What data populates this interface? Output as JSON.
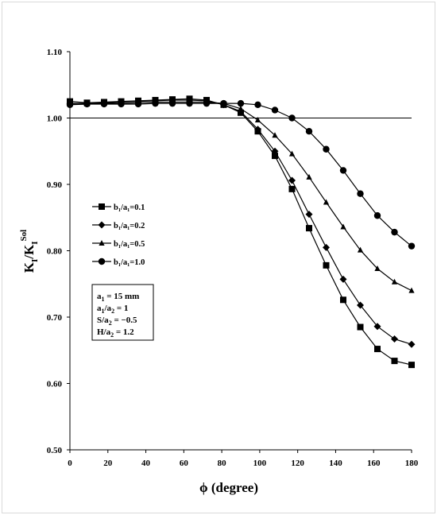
{
  "chart_data": {
    "type": "line",
    "xlabel": "ϕ (degree)",
    "ylabel": {
      "main": "K",
      "sub1": "I",
      "mid": "/K",
      "sub2": "I",
      "sup": "Sol"
    },
    "xlim": [
      0,
      180
    ],
    "ylim": [
      0.5,
      1.1
    ],
    "xticks": [
      0,
      20,
      40,
      60,
      80,
      100,
      120,
      140,
      160,
      180
    ],
    "yticks": [
      0.5,
      0.6,
      0.7,
      0.8,
      0.9,
      1.0,
      1.1
    ],
    "xtick_labels": [
      "0",
      "20",
      "40",
      "60",
      "80",
      "100",
      "120",
      "140",
      "160",
      "180"
    ],
    "ytick_labels": [
      "0.50",
      "0.60",
      "0.70",
      "0.80",
      "0.90",
      "1.00",
      "1.10"
    ],
    "reference_line": 1.0,
    "grid": false,
    "legend_position": "left-middle",
    "series": [
      {
        "name": "b₁/a₁=0.1",
        "marker": "square",
        "x": [
          0,
          9,
          18,
          27,
          36,
          45,
          54,
          63,
          72,
          81,
          90,
          99,
          108,
          117,
          126,
          135,
          144,
          153,
          162,
          171,
          180
        ],
        "y": [
          1.025,
          1.023,
          1.024,
          1.025,
          1.026,
          1.027,
          1.028,
          1.029,
          1.027,
          1.02,
          1.008,
          0.98,
          0.943,
          0.893,
          0.834,
          0.778,
          0.726,
          0.685,
          0.652,
          0.634,
          0.628
        ]
      },
      {
        "name": "b₁/a₁=0.2",
        "marker": "diamond",
        "x": [
          0,
          9,
          18,
          27,
          36,
          45,
          54,
          63,
          72,
          81,
          90,
          99,
          108,
          117,
          126,
          135,
          144,
          153,
          162,
          171,
          180
        ],
        "y": [
          1.022,
          1.022,
          1.023,
          1.024,
          1.025,
          1.026,
          1.027,
          1.027,
          1.026,
          1.02,
          1.01,
          0.983,
          0.95,
          0.906,
          0.855,
          0.805,
          0.757,
          0.718,
          0.686,
          0.667,
          0.659
        ]
      },
      {
        "name": "b₁/a₁=0.5",
        "marker": "triangle",
        "x": [
          0,
          9,
          18,
          27,
          36,
          45,
          54,
          63,
          72,
          81,
          90,
          99,
          108,
          117,
          126,
          135,
          144,
          153,
          162,
          171,
          180
        ],
        "y": [
          1.021,
          1.021,
          1.022,
          1.022,
          1.023,
          1.024,
          1.024,
          1.024,
          1.024,
          1.022,
          1.014,
          0.997,
          0.974,
          0.946,
          0.911,
          0.873,
          0.836,
          0.801,
          0.773,
          0.753,
          0.74
        ]
      },
      {
        "name": "b₁/a₁=1.0",
        "marker": "circle",
        "x": [
          0,
          9,
          18,
          27,
          36,
          45,
          54,
          63,
          72,
          81,
          90,
          99,
          108,
          117,
          126,
          135,
          144,
          153,
          162,
          171,
          180
        ],
        "y": [
          1.02,
          1.021,
          1.021,
          1.021,
          1.021,
          1.022,
          1.022,
          1.022,
          1.022,
          1.022,
          1.022,
          1.02,
          1.012,
          1.0,
          0.98,
          0.953,
          0.921,
          0.886,
          0.853,
          0.828,
          0.807
        ]
      }
    ],
    "annotation": [
      {
        "v": "a",
        "s": "1",
        "rest": " = 15 mm"
      },
      {
        "v": "a",
        "s": "1",
        "mid": "/a",
        "s2": "2",
        "rest": " = 1"
      },
      {
        "v": "S/a",
        "s": "2",
        "rest": " = −0.5"
      },
      {
        "v": "H/a",
        "s": "2",
        "rest": " = 1.2"
      }
    ]
  }
}
